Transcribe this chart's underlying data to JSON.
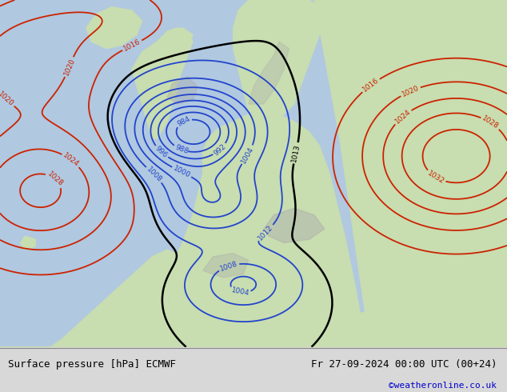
{
  "title_left": "Surface pressure [hPa] ECMWF",
  "title_right": "Fr 27-09-2024 00:00 UTC (00+24)",
  "watermark": "©weatheronline.co.uk",
  "watermark_color": "#0000cc",
  "footer_bg": "#d8d8d8",
  "fig_width": 6.34,
  "fig_height": 4.9,
  "dpi": 100,
  "sea_color": "#b0c8e0",
  "land_color": "#c8ddb0",
  "mountain_color": "#aaaaaa"
}
